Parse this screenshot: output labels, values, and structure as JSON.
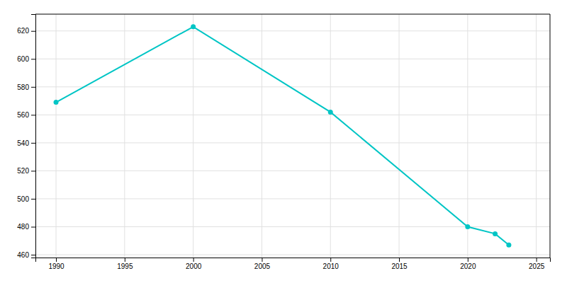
{
  "chart_data": {
    "type": "line",
    "x": [
      1990,
      2000,
      2010,
      2020,
      2022,
      2023
    ],
    "values": [
      569,
      623,
      562,
      480,
      475,
      467
    ],
    "color": "#00C5C5",
    "marker": "circle",
    "xlim": [
      1988.5,
      2026
    ],
    "ylim": [
      458,
      632
    ],
    "xticks": [
      1990,
      1995,
      2000,
      2005,
      2010,
      2015,
      2020,
      2025
    ],
    "yticks": [
      460,
      480,
      500,
      520,
      540,
      560,
      580,
      600,
      620
    ],
    "grid": true
  }
}
